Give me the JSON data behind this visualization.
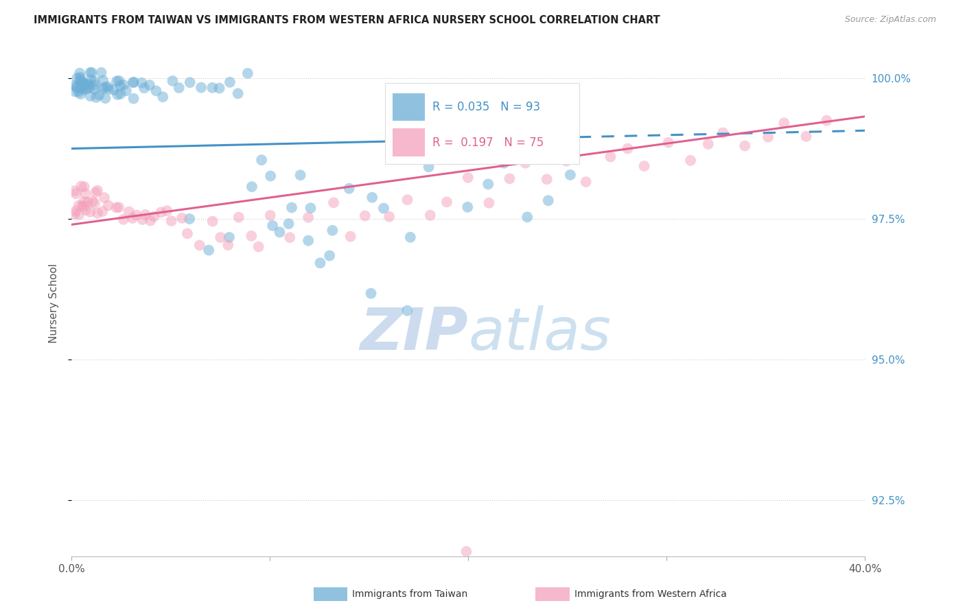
{
  "title": "IMMIGRANTS FROM TAIWAN VS IMMIGRANTS FROM WESTERN AFRICA NURSERY SCHOOL CORRELATION CHART",
  "source": "Source: ZipAtlas.com",
  "ylabel": "Nursery School",
  "xlim": [
    0.0,
    0.4
  ],
  "ylim": [
    0.915,
    1.005
  ],
  "y_ticks": [
    0.925,
    0.95,
    0.975,
    1.0
  ],
  "y_tick_labels": [
    "92.5%",
    "95.0%",
    "97.5%",
    "100.0%"
  ],
  "taiwan_R": 0.035,
  "taiwan_N": 93,
  "western_africa_R": 0.197,
  "western_africa_N": 75,
  "taiwan_color": "#6baed6",
  "western_africa_color": "#f4a0bb",
  "taiwan_line_color": "#4292c6",
  "western_africa_line_color": "#e06090",
  "right_axis_color": "#4292c6",
  "background_color": "#ffffff",
  "watermark_zip_color": "#c8d8ee",
  "watermark_atlas_color": "#c8d8ee",
  "tw_x": [
    0.001,
    0.002,
    0.002,
    0.003,
    0.003,
    0.003,
    0.004,
    0.004,
    0.004,
    0.005,
    0.005,
    0.005,
    0.005,
    0.006,
    0.006,
    0.006,
    0.007,
    0.007,
    0.007,
    0.008,
    0.008,
    0.009,
    0.009,
    0.01,
    0.01,
    0.01,
    0.011,
    0.011,
    0.012,
    0.012,
    0.013,
    0.014,
    0.015,
    0.015,
    0.016,
    0.017,
    0.018,
    0.019,
    0.02,
    0.021,
    0.022,
    0.023,
    0.024,
    0.025,
    0.026,
    0.027,
    0.028,
    0.03,
    0.031,
    0.033,
    0.035,
    0.037,
    0.04,
    0.042,
    0.045,
    0.05,
    0.055,
    0.06,
    0.065,
    0.07,
    0.075,
    0.08,
    0.085,
    0.09,
    0.095,
    0.1,
    0.105,
    0.11,
    0.115,
    0.12,
    0.125,
    0.13,
    0.14,
    0.15,
    0.16,
    0.17,
    0.18,
    0.2,
    0.21,
    0.22,
    0.23,
    0.24,
    0.25,
    0.06,
    0.07,
    0.08,
    0.09,
    0.1,
    0.11,
    0.12,
    0.13,
    0.15,
    0.17
  ],
  "tw_y": [
    0.999,
    0.998,
    1.0,
    0.999,
    0.998,
    1.0,
    0.999,
    1.0,
    0.998,
    0.999,
    0.998,
    1.0,
    0.999,
    0.999,
    1.0,
    0.998,
    0.999,
    1.0,
    0.998,
    0.999,
    1.0,
    0.999,
    0.998,
    0.999,
    0.998,
    1.0,
    0.999,
    0.998,
    0.999,
    0.998,
    0.998,
    0.999,
    0.999,
    0.998,
    0.999,
    0.998,
    0.999,
    0.998,
    0.998,
    0.999,
    0.999,
    0.998,
    0.998,
    0.998,
    0.999,
    0.998,
    0.999,
    0.999,
    0.998,
    0.998,
    0.999,
    0.998,
    0.998,
    0.999,
    0.998,
    0.999,
    0.998,
    0.999,
    0.998,
    0.999,
    0.998,
    0.999,
    0.998,
    0.999,
    0.985,
    0.975,
    0.972,
    0.978,
    0.982,
    0.97,
    0.968,
    0.972,
    0.98,
    0.978,
    0.975,
    0.972,
    0.985,
    0.978,
    0.982,
    0.985,
    0.975,
    0.978,
    0.982,
    0.975,
    0.968,
    0.972,
    0.978,
    0.982,
    0.975,
    0.978,
    0.968,
    0.962,
    0.958
  ],
  "wa_x": [
    0.001,
    0.002,
    0.003,
    0.003,
    0.004,
    0.004,
    0.005,
    0.005,
    0.006,
    0.006,
    0.007,
    0.007,
    0.008,
    0.008,
    0.009,
    0.01,
    0.011,
    0.012,
    0.013,
    0.014,
    0.015,
    0.016,
    0.018,
    0.02,
    0.022,
    0.025,
    0.028,
    0.03,
    0.033,
    0.035,
    0.038,
    0.04,
    0.042,
    0.045,
    0.048,
    0.05,
    0.055,
    0.06,
    0.065,
    0.07,
    0.075,
    0.08,
    0.085,
    0.09,
    0.095,
    0.1,
    0.11,
    0.12,
    0.13,
    0.14,
    0.15,
    0.16,
    0.17,
    0.18,
    0.19,
    0.2,
    0.21,
    0.22,
    0.23,
    0.24,
    0.25,
    0.26,
    0.27,
    0.28,
    0.29,
    0.3,
    0.31,
    0.32,
    0.33,
    0.34,
    0.35,
    0.36,
    0.37,
    0.38,
    0.2
  ],
  "wa_y": [
    0.98,
    0.978,
    0.98,
    0.976,
    0.978,
    0.98,
    0.978,
    0.976,
    0.978,
    0.98,
    0.978,
    0.976,
    0.978,
    0.98,
    0.976,
    0.978,
    0.98,
    0.976,
    0.978,
    0.98,
    0.976,
    0.978,
    0.978,
    0.976,
    0.978,
    0.975,
    0.976,
    0.975,
    0.976,
    0.975,
    0.976,
    0.975,
    0.975,
    0.976,
    0.975,
    0.976,
    0.975,
    0.972,
    0.97,
    0.975,
    0.972,
    0.97,
    0.975,
    0.972,
    0.97,
    0.975,
    0.972,
    0.975,
    0.978,
    0.972,
    0.975,
    0.975,
    0.978,
    0.975,
    0.978,
    0.982,
    0.978,
    0.982,
    0.985,
    0.982,
    0.985,
    0.982,
    0.985,
    0.988,
    0.985,
    0.988,
    0.985,
    0.988,
    0.99,
    0.988,
    0.99,
    0.992,
    0.99,
    0.992,
    0.916
  ]
}
